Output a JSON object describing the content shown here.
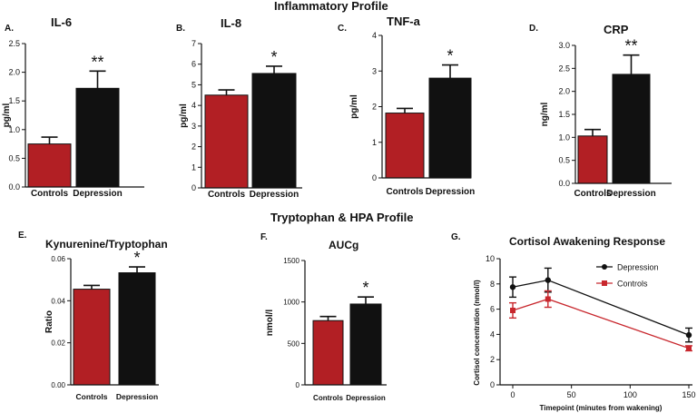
{
  "section_titles": {
    "top": "Inflammatory Profile",
    "bottom": "Tryptophan & HPA Profile"
  },
  "colors": {
    "controls": "#b21f24",
    "depression": "#111111"
  },
  "chart_data": [
    {
      "id": "A",
      "letter": "A.",
      "type": "bar",
      "title": "IL-6",
      "ylabel": "pg/ml",
      "xlabel": "",
      "categories": [
        "Controls",
        "Depression"
      ],
      "values": [
        0.75,
        1.72
      ],
      "errors": [
        0.12,
        0.3
      ],
      "significance": [
        "",
        "**"
      ],
      "ylim": [
        0,
        2.5
      ],
      "yticks": [
        0,
        0.5,
        1,
        1.5,
        2,
        2.5
      ],
      "ytick_labels": [
        "0.0",
        "0.5",
        "1.0",
        "1.5",
        "2.0",
        "2.5"
      ]
    },
    {
      "id": "B",
      "letter": "B.",
      "type": "bar",
      "title": "IL-8",
      "ylabel": "pg/ml",
      "xlabel": "",
      "categories": [
        "Controls",
        "Depression"
      ],
      "values": [
        4.5,
        5.55
      ],
      "errors": [
        0.25,
        0.35
      ],
      "significance": [
        "",
        "*"
      ],
      "ylim": [
        0,
        7
      ],
      "yticks": [
        0,
        1,
        2,
        3,
        4,
        5,
        6,
        7
      ],
      "ytick_labels": [
        "0",
        "1",
        "2",
        "3",
        "4",
        "5",
        "6",
        "7"
      ]
    },
    {
      "id": "C",
      "letter": "C.",
      "type": "bar",
      "title": "TNF-a",
      "ylabel": "pg/ml",
      "xlabel": "",
      "categories": [
        "Controls",
        "Depression"
      ],
      "values": [
        1.82,
        2.8
      ],
      "errors": [
        0.13,
        0.37
      ],
      "significance": [
        "",
        "*"
      ],
      "ylim": [
        0,
        4
      ],
      "yticks": [
        0,
        1,
        2,
        3,
        4
      ],
      "ytick_labels": [
        "0",
        "1",
        "2",
        "3",
        "4"
      ]
    },
    {
      "id": "D",
      "letter": "D.",
      "type": "bar",
      "title": "CRP",
      "ylabel": "ng/ml",
      "xlabel": "",
      "categories": [
        "Controls",
        "Depression"
      ],
      "values": [
        1.03,
        2.37
      ],
      "errors": [
        0.14,
        0.42
      ],
      "significance": [
        "",
        "**"
      ],
      "ylim": [
        0,
        3
      ],
      "yticks": [
        0,
        0.5,
        1,
        1.5,
        2,
        2.5,
        3
      ],
      "ytick_labels": [
        "0.0",
        "0.5",
        "1.0",
        "1.5",
        "2.0",
        "2.5",
        "3.0"
      ]
    },
    {
      "id": "E",
      "letter": "E.",
      "type": "bar",
      "title": "Kynurenine/Tryptophan",
      "ylabel": "Ratio",
      "xlabel": "",
      "categories": [
        "Controls",
        "Depression"
      ],
      "values": [
        0.0455,
        0.0533
      ],
      "errors": [
        0.0018,
        0.0028
      ],
      "significance": [
        "",
        "*"
      ],
      "ylim": [
        0,
        0.06
      ],
      "yticks": [
        0,
        0.02,
        0.04,
        0.06
      ],
      "ytick_labels": [
        "0.00",
        "0.02",
        "0.04",
        "0.06"
      ]
    },
    {
      "id": "F",
      "letter": "F.",
      "type": "bar",
      "title": "AUCg",
      "ylabel": "nmol/l",
      "xlabel": "",
      "categories": [
        "Controls",
        "Depression"
      ],
      "values": [
        775,
        975
      ],
      "errors": [
        50,
        85
      ],
      "significance": [
        "",
        "*"
      ],
      "ylim": [
        0,
        1500
      ],
      "yticks": [
        0,
        500,
        1000,
        1500
      ],
      "ytick_labels": [
        "0",
        "500",
        "1000",
        "1500"
      ]
    },
    {
      "id": "G",
      "letter": "G.",
      "type": "line",
      "title": "Cortisol Awakening Response",
      "xlabel": "Timepoint (minutes from wakening)",
      "ylabel": "Cortisol concentration (nmol/l)",
      "x": [
        0,
        30,
        150
      ],
      "xlim": [
        0,
        150
      ],
      "xticks": [
        0,
        50,
        100,
        150
      ],
      "ylim": [
        0,
        10
      ],
      "yticks": [
        0,
        2,
        4,
        6,
        8,
        10
      ],
      "legend_position": "top-right",
      "series": [
        {
          "name": "Depression",
          "color": "#111111",
          "marker": "circle",
          "values": [
            7.75,
            8.3,
            3.95
          ],
          "errors": [
            0.8,
            0.95,
            0.55
          ]
        },
        {
          "name": "Controls",
          "color": "#c8272d",
          "marker": "square",
          "values": [
            5.9,
            6.8,
            2.9
          ],
          "errors": [
            0.6,
            0.65,
            0.2
          ]
        }
      ]
    }
  ]
}
